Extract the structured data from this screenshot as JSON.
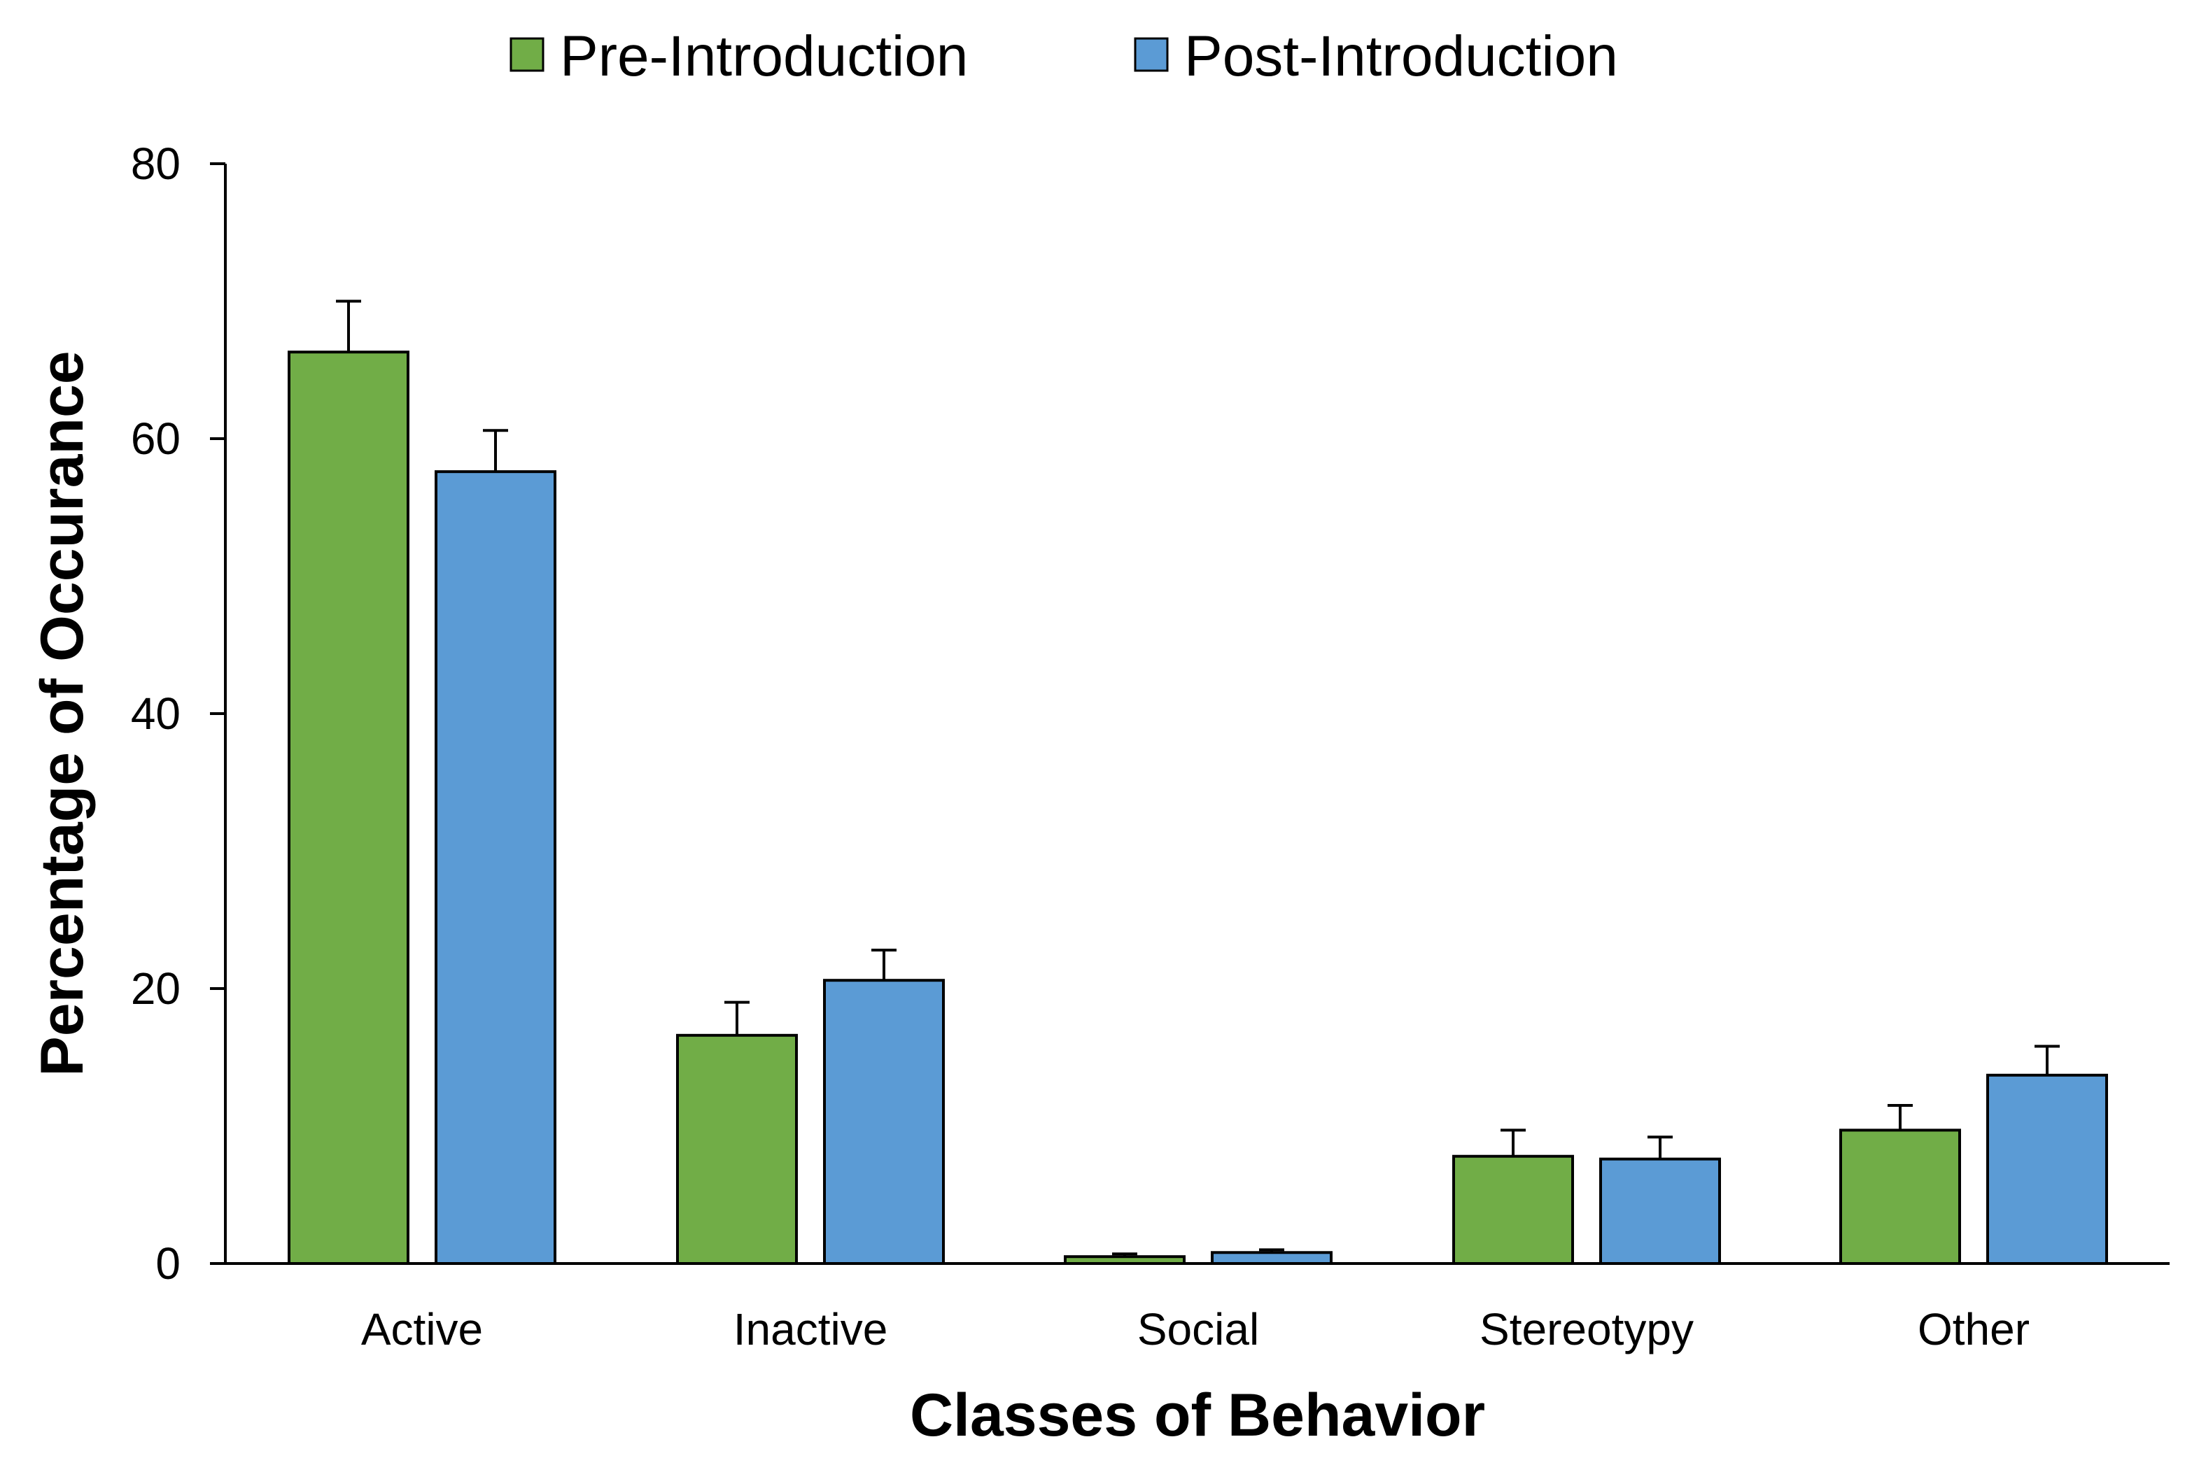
{
  "chart_data": {
    "type": "bar",
    "title": "",
    "xlabel": "Classes of Behavior",
    "ylabel": "Percentage of Occurance",
    "categories": [
      "Active",
      "Inactive",
      "Social",
      "Stereotypy",
      "Other"
    ],
    "series": [
      {
        "name": "Pre-Introduction",
        "color": "#71AD47",
        "values": [
          66.3,
          16.6,
          0.5,
          7.8,
          9.7
        ],
        "errors": [
          3.7,
          2.4,
          0.2,
          1.9,
          1.8
        ]
      },
      {
        "name": "Post-Introduction",
        "color": "#5B9BD5",
        "values": [
          57.6,
          20.6,
          0.8,
          7.6,
          13.7
        ],
        "errors": [
          3.0,
          2.2,
          0.2,
          1.6,
          2.1
        ]
      }
    ],
    "ylim": [
      0,
      80
    ],
    "yticks": [
      0,
      20,
      40,
      60,
      80
    ],
    "grid": false,
    "legend": "top-center"
  }
}
